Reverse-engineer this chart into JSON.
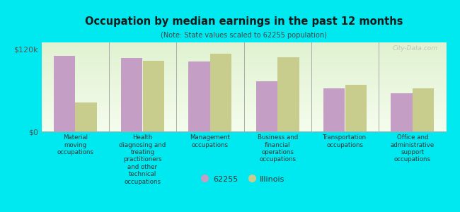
{
  "title": "Occupation by median earnings in the past 12 months",
  "subtitle": "(Note: State values scaled to 62255 population)",
  "categories": [
    "Material\nmoving\noccupations",
    "Health\ndiagnosing and\ntreating\npractitioners\nand other\ntechnical\noccupations",
    "Management\noccupations",
    "Business and\nfinancial\noperations\noccupations",
    "Transportation\noccupations",
    "Office and\nadministrative\nsupport\noccupations"
  ],
  "values_62255": [
    110000,
    107000,
    102000,
    73000,
    63000,
    56000
  ],
  "values_illinois": [
    42000,
    103000,
    114000,
    108000,
    68000,
    63000
  ],
  "color_62255": "#c49ec4",
  "color_illinois": "#c8cc8c",
  "background_color": "#00e8f0",
  "plot_bg_top": "#e8f5e0",
  "plot_bg_bottom": "#f5fbf0",
  "ylim": [
    0,
    130000
  ],
  "yticks": [
    0,
    120000
  ],
  "ytick_labels": [
    "$0",
    "$120k"
  ],
  "legend_label_62255": "62255",
  "legend_label_illinois": "Illinois",
  "watermark": "City-Data.com"
}
